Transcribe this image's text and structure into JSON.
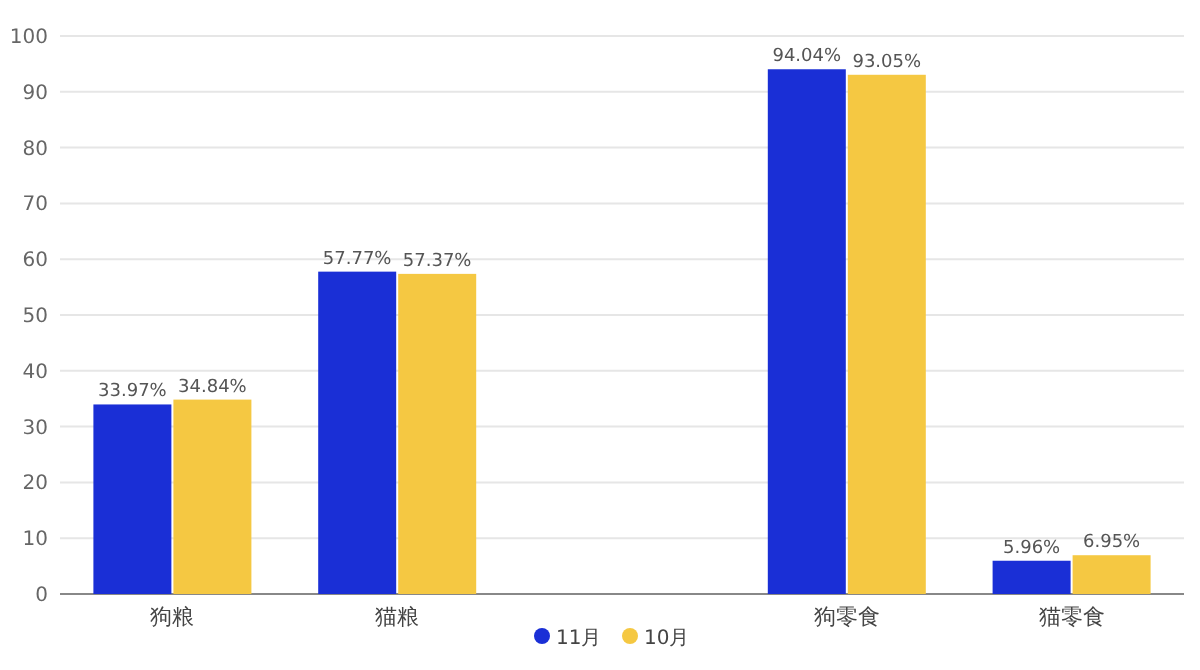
{
  "chart_data": {
    "type": "bar",
    "categories": [
      "狗粮",
      "猫粮",
      null,
      "狗零食",
      "猫零食"
    ],
    "series": [
      {
        "name": "11月",
        "color": "#1a2fd6",
        "values": [
          33.97,
          57.77,
          null,
          94.04,
          5.96
        ],
        "value_labels": [
          "33.97%",
          "57.77%",
          null,
          "94.04%",
          "5.96%"
        ]
      },
      {
        "name": "10月",
        "color": "#f5c842",
        "values": [
          34.84,
          57.37,
          null,
          93.05,
          6.95
        ],
        "value_labels": [
          "34.84%",
          "57.37%",
          null,
          "93.05%",
          "6.95%"
        ]
      }
    ],
    "ylim": [
      0,
      100
    ],
    "yticks": [
      0,
      10,
      20,
      30,
      40,
      50,
      60,
      70,
      80,
      90,
      100
    ],
    "grid": "y",
    "legend": "bottom"
  }
}
